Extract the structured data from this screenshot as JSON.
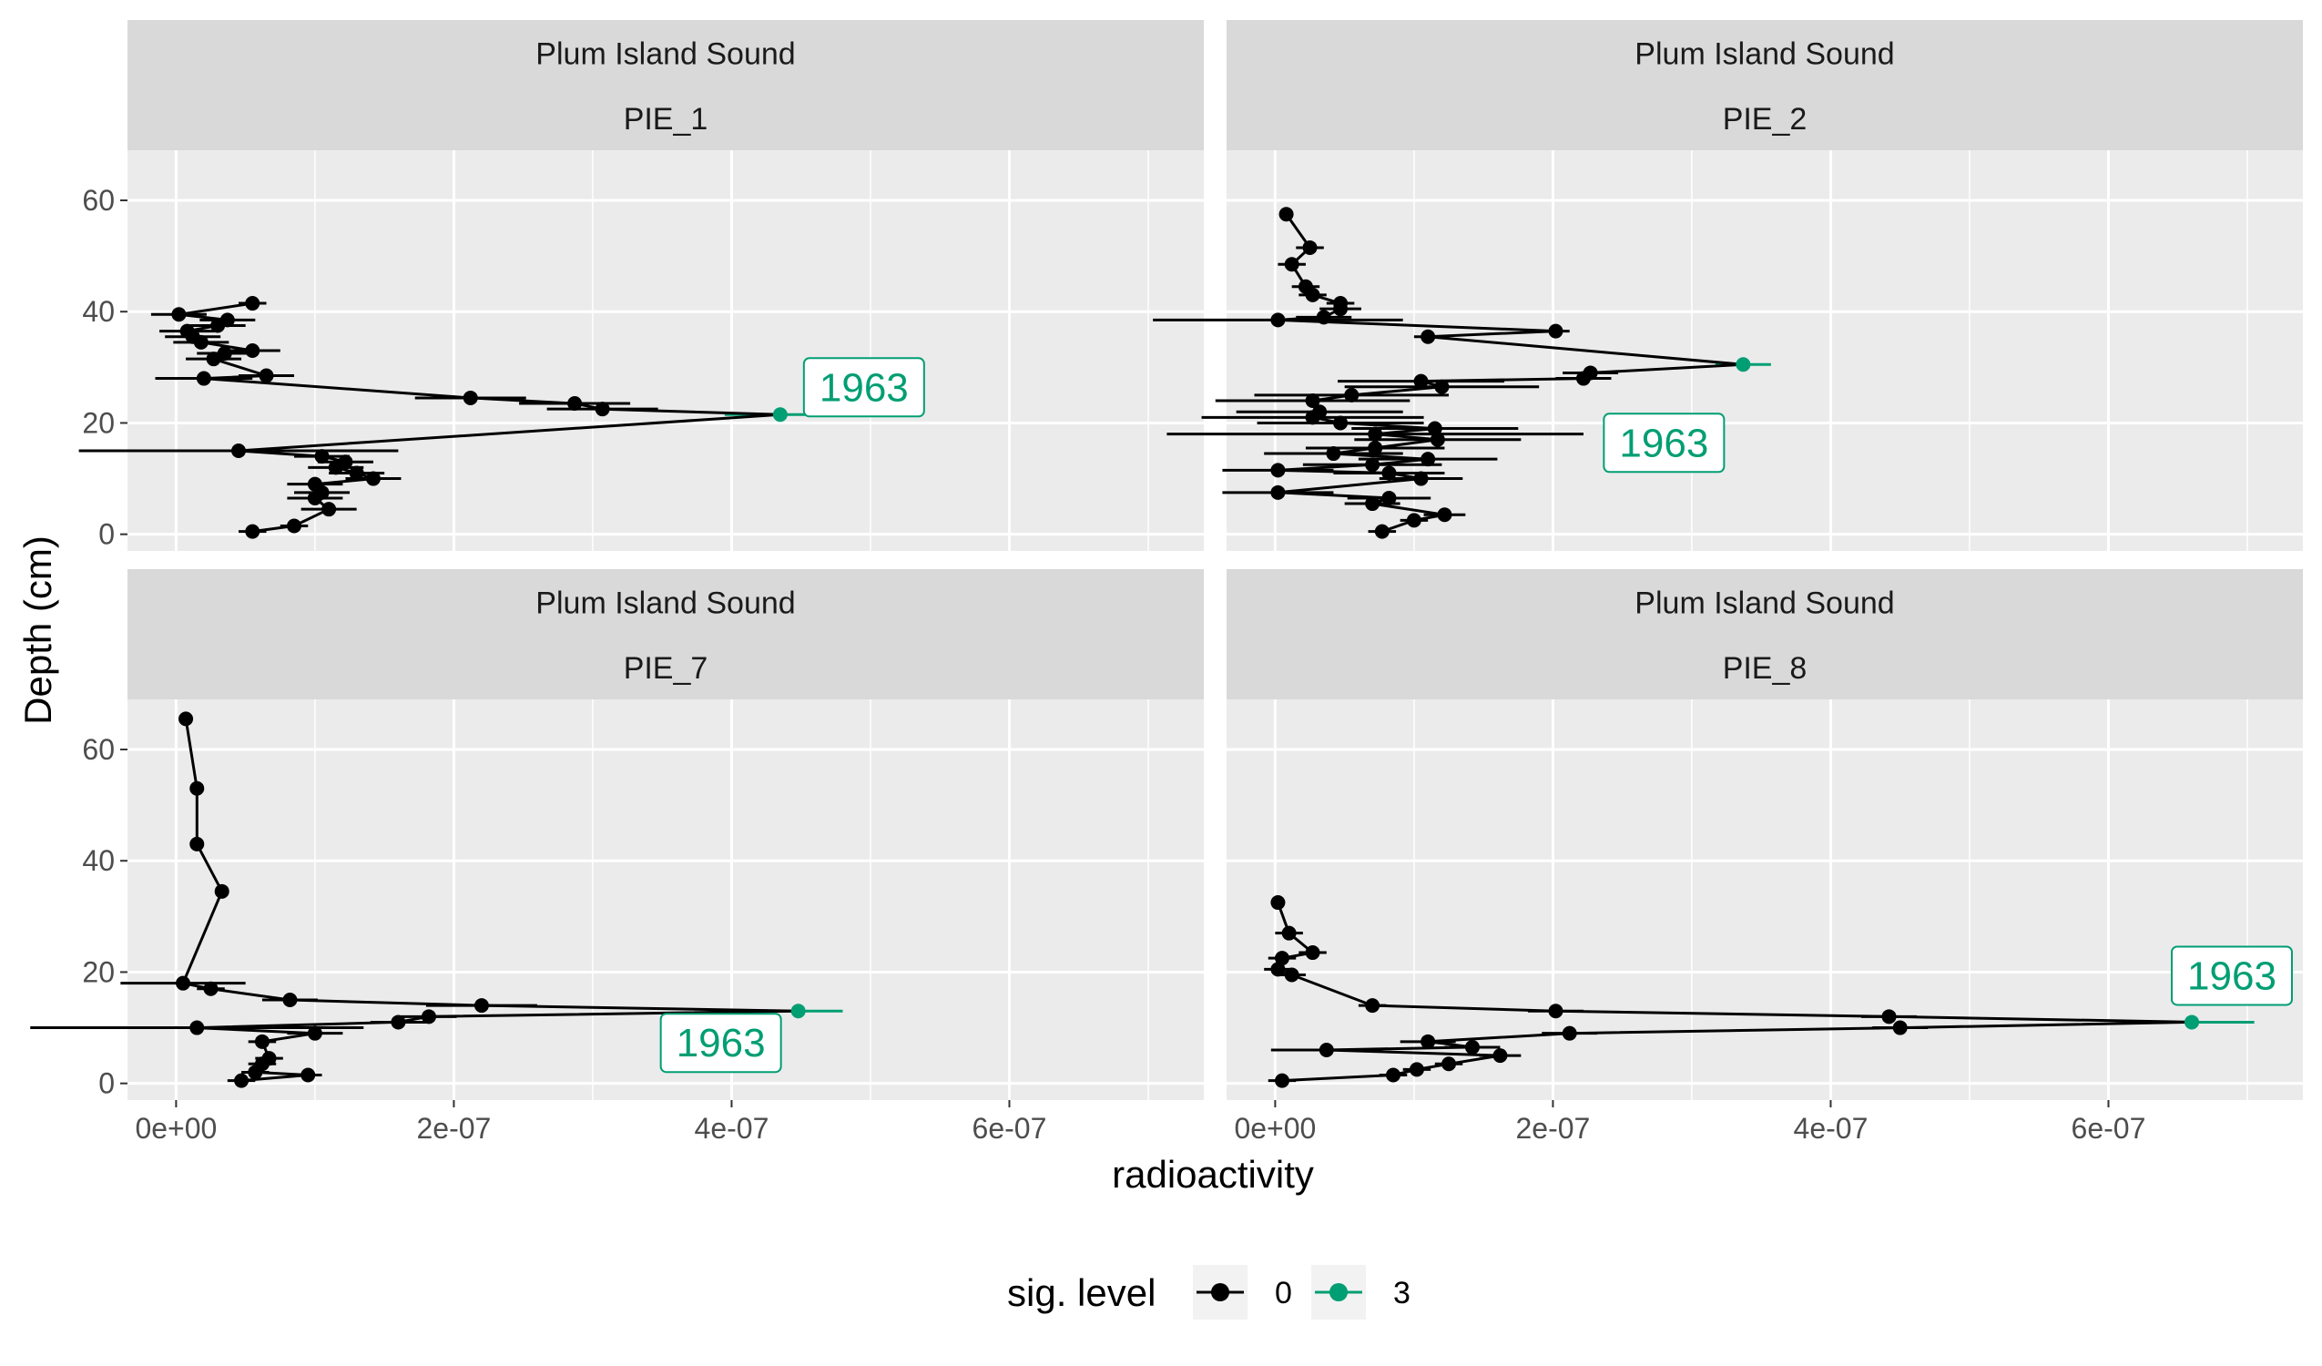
{
  "chart_data": {
    "type": "line",
    "xlabel": "radioactivity",
    "ylabel": "Depth (cm)",
    "xlim": [
      -3.5e-08,
      7.4e-07
    ],
    "ylim": [
      69,
      -3
    ],
    "x_ticks": [
      0,
      2e-07,
      4e-07,
      6e-07
    ],
    "x_tick_labels": [
      "0e+00",
      "2e-07",
      "4e-07",
      "6e-07"
    ],
    "y_ticks": [
      0,
      20,
      40,
      60
    ],
    "y_tick_labels": [
      "0",
      "20",
      "40",
      "60"
    ],
    "grid": true,
    "legend": {
      "title": "sig. level",
      "position": "bottom",
      "entries": [
        {
          "label": "0",
          "color": "#000000"
        },
        {
          "label": "3",
          "color": "#009E73"
        }
      ]
    },
    "colors": {
      "sig0": "#000000",
      "sig3": "#009E73"
    },
    "panels": [
      {
        "site": "Plum Island Sound",
        "core": "PIE_1",
        "annotation": {
          "label": "1963",
          "depth": 21.5,
          "x": 4.35e-07
        },
        "points": [
          {
            "depth": 0.5,
            "x": 5.5e-08,
            "err": 1e-08
          },
          {
            "depth": 1.5,
            "x": 8.5e-08,
            "err": 1e-08
          },
          {
            "depth": 4.5,
            "x": 1.1e-07,
            "err": 2e-08
          },
          {
            "depth": 6.5,
            "x": 1e-07,
            "err": 2e-08
          },
          {
            "depth": 7.5,
            "x": 1.05e-07,
            "err": 2e-08
          },
          {
            "depth": 9,
            "x": 1e-07,
            "err": 2e-08
          },
          {
            "depth": 10,
            "x": 1.42e-07,
            "err": 2e-08
          },
          {
            "depth": 11,
            "x": 1.3e-07,
            "err": 2e-08
          },
          {
            "depth": 12,
            "x": 1.15e-07,
            "err": 2e-08
          },
          {
            "depth": 13,
            "x": 1.22e-07,
            "err": 2e-08
          },
          {
            "depth": 14,
            "x": 1.05e-07,
            "err": 2e-08
          },
          {
            "depth": 15,
            "x": 4.5e-08,
            "err": 1.15e-07
          },
          {
            "depth": 21.5,
            "x": 4.35e-07,
            "err": 4e-08,
            "sig": 3
          },
          {
            "depth": 22.5,
            "x": 3.07e-07,
            "err": 4e-08
          },
          {
            "depth": 23.5,
            "x": 2.87e-07,
            "err": 4e-08
          },
          {
            "depth": 24.5,
            "x": 2.12e-07,
            "err": 4e-08
          },
          {
            "depth": 28,
            "x": 2e-08,
            "err": 3.5e-08
          },
          {
            "depth": 28.5,
            "x": 6.5e-08,
            "err": 2e-08
          },
          {
            "depth": 31.5,
            "x": 2.7e-08,
            "err": 2e-08
          },
          {
            "depth": 32.5,
            "x": 3.5e-08,
            "err": 2e-08
          },
          {
            "depth": 33,
            "x": 5.5e-08,
            "err": 2e-08
          },
          {
            "depth": 34.5,
            "x": 1.8e-08,
            "err": 2e-08
          },
          {
            "depth": 35.5,
            "x": 1.2e-08,
            "err": 2e-08
          },
          {
            "depth": 36.5,
            "x": 8e-09,
            "err": 2e-08
          },
          {
            "depth": 37.5,
            "x": 3e-08,
            "err": 2e-08
          },
          {
            "depth": 38.5,
            "x": 3.7e-08,
            "err": 2e-08
          },
          {
            "depth": 39.5,
            "x": 2e-09,
            "err": 2e-08
          },
          {
            "depth": 41.5,
            "x": 5.5e-08,
            "err": 1e-08
          }
        ]
      },
      {
        "site": "Plum Island Sound",
        "core": "PIE_2",
        "annotation": {
          "label": "1963",
          "depth": 30.5,
          "x": 3.37e-07
        },
        "points": [
          {
            "depth": 0.5,
            "x": 7.7e-08,
            "err": 1e-08
          },
          {
            "depth": 2.5,
            "x": 1e-07,
            "err": 1e-08
          },
          {
            "depth": 3.5,
            "x": 1.22e-07,
            "err": 1.5e-08
          },
          {
            "depth": 5.5,
            "x": 7e-08,
            "err": 2e-08
          },
          {
            "depth": 6.5,
            "x": 8.2e-08,
            "err": 3e-08
          },
          {
            "depth": 7.5,
            "x": 2e-09,
            "err": 4e-08
          },
          {
            "depth": 10,
            "x": 1.05e-07,
            "err": 3e-08
          },
          {
            "depth": 11,
            "x": 8.2e-08,
            "err": 4e-08
          },
          {
            "depth": 11.5,
            "x": 2e-09,
            "err": 4e-08
          },
          {
            "depth": 12.5,
            "x": 7e-08,
            "err": 5e-08
          },
          {
            "depth": 13.5,
            "x": 1.1e-07,
            "err": 5e-08
          },
          {
            "depth": 14.5,
            "x": 4.2e-08,
            "err": 5e-08
          },
          {
            "depth": 15.5,
            "x": 7.2e-08,
            "err": 5e-08
          },
          {
            "depth": 17,
            "x": 1.17e-07,
            "err": 6e-08
          },
          {
            "depth": 18,
            "x": 7.2e-08,
            "err": 1.5e-07
          },
          {
            "depth": 19,
            "x": 1.15e-07,
            "err": 6e-08
          },
          {
            "depth": 20,
            "x": 4.7e-08,
            "err": 6e-08
          },
          {
            "depth": 21,
            "x": 2.7e-08,
            "err": 8e-08
          },
          {
            "depth": 22,
            "x": 3.2e-08,
            "err": 6e-08
          },
          {
            "depth": 24,
            "x": 2.7e-08,
            "err": 7e-08
          },
          {
            "depth": 25,
            "x": 5.5e-08,
            "err": 7e-08
          },
          {
            "depth": 26.5,
            "x": 1.2e-07,
            "err": 7e-08
          },
          {
            "depth": 27.5,
            "x": 1.05e-07,
            "err": 6e-08
          },
          {
            "depth": 28,
            "x": 2.22e-07,
            "err": 2e-08
          },
          {
            "depth": 29,
            "x": 2.27e-07,
            "err": 2e-08
          },
          {
            "depth": 30.5,
            "x": 3.37e-07,
            "err": 2e-08,
            "sig": 3
          },
          {
            "depth": 35.5,
            "x": 1.1e-07,
            "err": 1e-08
          },
          {
            "depth": 36.5,
            "x": 2.02e-07,
            "err": 1e-08
          },
          {
            "depth": 38.5,
            "x": 2e-09,
            "err": 9e-08
          },
          {
            "depth": 39,
            "x": 3.5e-08,
            "err": 2e-08
          },
          {
            "depth": 40.5,
            "x": 4.7e-08,
            "err": 1.5e-08
          },
          {
            "depth": 41.5,
            "x": 4.7e-08,
            "err": 1e-08
          },
          {
            "depth": 43,
            "x": 2.7e-08,
            "err": 1e-08
          },
          {
            "depth": 44.5,
            "x": 2.2e-08,
            "err": 1e-08
          },
          {
            "depth": 48.5,
            "x": 1.2e-08,
            "err": 1e-08
          },
          {
            "depth": 51.5,
            "x": 2.5e-08,
            "err": 1e-08
          },
          {
            "depth": 57.5,
            "x": 8e-09,
            "err": 5e-09
          }
        ]
      },
      {
        "site": "Plum Island Sound",
        "core": "PIE_7",
        "annotation": {
          "label": "1963",
          "depth": 13,
          "x": 4.48e-07
        },
        "points": [
          {
            "depth": 0.5,
            "x": 4.7e-08,
            "err": 1e-08
          },
          {
            "depth": 1.5,
            "x": 9.5e-08,
            "err": 1e-08
          },
          {
            "depth": 2,
            "x": 5.7e-08,
            "err": 1e-08
          },
          {
            "depth": 3.5,
            "x": 6.2e-08,
            "err": 1e-08
          },
          {
            "depth": 4.5,
            "x": 6.7e-08,
            "err": 1e-08
          },
          {
            "depth": 7.5,
            "x": 6.2e-08,
            "err": 1e-08
          },
          {
            "depth": 9,
            "x": 1e-07,
            "err": 2e-08
          },
          {
            "depth": 10,
            "x": 1.5e-08,
            "err": 1.2e-07
          },
          {
            "depth": 11,
            "x": 1.6e-07,
            "err": 2e-08
          },
          {
            "depth": 12,
            "x": 1.82e-07,
            "err": 2e-08
          },
          {
            "depth": 13,
            "x": 4.48e-07,
            "err": 3.2e-08,
            "sig": 3
          },
          {
            "depth": 14,
            "x": 2.2e-07,
            "err": 4e-08
          },
          {
            "depth": 15,
            "x": 8.2e-08,
            "err": 2e-08
          },
          {
            "depth": 17,
            "x": 2.5e-08,
            "err": 1e-08
          },
          {
            "depth": 18,
            "x": 5e-09,
            "err": 4.5e-08
          },
          {
            "depth": 34.5,
            "x": 3.3e-08,
            "err": 5e-09
          },
          {
            "depth": 43,
            "x": 1.5e-08,
            "err": 5e-09
          },
          {
            "depth": 53,
            "x": 1.5e-08,
            "err": 5e-09
          },
          {
            "depth": 65.5,
            "x": 7e-09,
            "err": 5e-09
          }
        ]
      },
      {
        "site": "Plum Island Sound",
        "core": "PIE_8",
        "annotation": {
          "label": "1963",
          "depth": 11,
          "x": 6.6e-07
        },
        "points": [
          {
            "depth": 0.5,
            "x": 5e-09,
            "err": 1e-08
          },
          {
            "depth": 1.5,
            "x": 8.5e-08,
            "err": 1e-08
          },
          {
            "depth": 2.5,
            "x": 1.02e-07,
            "err": 1e-08
          },
          {
            "depth": 3.5,
            "x": 1.25e-07,
            "err": 1e-08
          },
          {
            "depth": 5,
            "x": 1.62e-07,
            "err": 1.5e-08
          },
          {
            "depth": 6,
            "x": 3.7e-08,
            "err": 4e-08
          },
          {
            "depth": 6.5,
            "x": 1.42e-07,
            "err": 2e-08
          },
          {
            "depth": 7.5,
            "x": 1.1e-07,
            "err": 2e-08
          },
          {
            "depth": 9,
            "x": 2.12e-07,
            "err": 2e-08
          },
          {
            "depth": 10,
            "x": 4.5e-07,
            "err": 2e-08
          },
          {
            "depth": 11,
            "x": 6.6e-07,
            "err": 4.5e-08,
            "sig": 3
          },
          {
            "depth": 12,
            "x": 4.42e-07,
            "err": 2e-08
          },
          {
            "depth": 13,
            "x": 2.02e-07,
            "err": 2e-08
          },
          {
            "depth": 14,
            "x": 7e-08,
            "err": 1e-08
          },
          {
            "depth": 19.5,
            "x": 1.2e-08,
            "err": 1e-08
          },
          {
            "depth": 20.5,
            "x": 2e-09,
            "err": 1e-08
          },
          {
            "depth": 22.5,
            "x": 5e-09,
            "err": 1e-08
          },
          {
            "depth": 23.5,
            "x": 2.7e-08,
            "err": 1e-08
          },
          {
            "depth": 27,
            "x": 1e-08,
            "err": 1e-08
          },
          {
            "depth": 32.5,
            "x": 2e-09,
            "err": 5e-09
          }
        ]
      }
    ]
  }
}
